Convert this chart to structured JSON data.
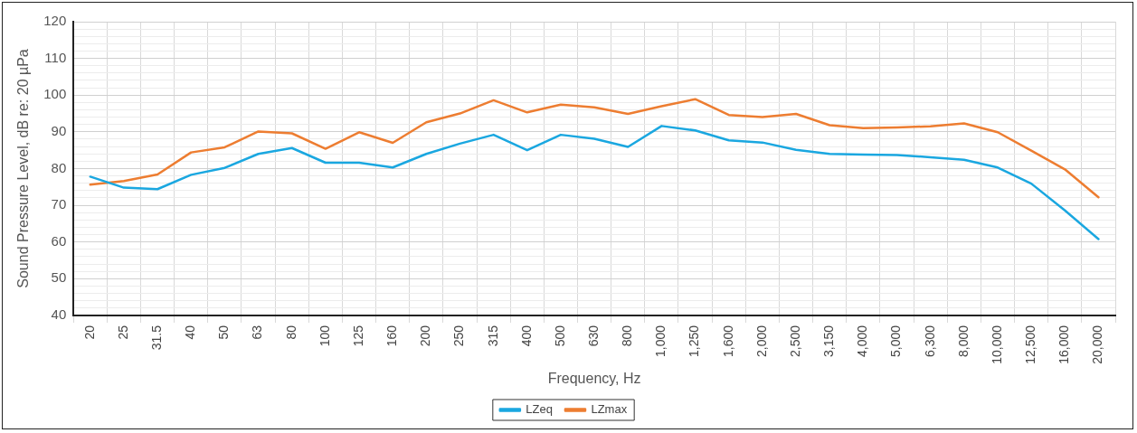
{
  "chart_data": {
    "type": "line",
    "xlabel": "Frequency, Hz",
    "ylabel": "Sound Pressure Level, dB re: 20 µPa",
    "categories": [
      "20",
      "25",
      "31.5",
      "40",
      "50",
      "63",
      "80",
      "100",
      "125",
      "160",
      "200",
      "250",
      "315",
      "400",
      "500",
      "630",
      "800",
      "1,000",
      "1,250",
      "1,600",
      "2,000",
      "2,500",
      "3,150",
      "4,000",
      "5,000",
      "6,300",
      "8,000",
      "10,000",
      "12,500",
      "16,000",
      "20,000"
    ],
    "series": [
      {
        "name": "LZeq",
        "color": "#1aa7e0",
        "values": [
          77.8,
          74.8,
          74.4,
          78.3,
          80.2,
          84,
          85.6,
          81.6,
          81.6,
          80.3,
          84,
          86.8,
          89.2,
          85,
          89.2,
          88.1,
          85.9,
          91.6,
          90.4,
          87.7,
          87.1,
          85.1,
          84,
          83.8,
          83.7,
          83.1,
          82.4,
          80.3,
          75.9,
          68.6,
          60.8
        ]
      },
      {
        "name": "LZmax",
        "color": "#ed7d31",
        "values": [
          75.6,
          76.6,
          78.4,
          84.4,
          85.8,
          90.1,
          89.6,
          85.4,
          89.9,
          87,
          92.6,
          95,
          98.6,
          95.3,
          97.4,
          96.7,
          94.9,
          97,
          98.9,
          94.6,
          94,
          94.9,
          91.8,
          91,
          91.2,
          91.5,
          92.3,
          89.9,
          84.9,
          79.8,
          72.2
        ]
      }
    ],
    "ylim": [
      40,
      120
    ],
    "yticks": [
      40,
      {
        "value": 42,
        "label": null
      },
      {
        "value": 44,
        "label": null
      },
      {
        "value": 46,
        "label": null
      },
      {
        "value": 48,
        "label": null
      },
      50,
      {
        "value": 52,
        "label": null
      },
      {
        "value": 54,
        "label": null
      },
      {
        "value": 56,
        "label": null
      },
      {
        "value": 58,
        "label": null
      },
      60,
      {
        "value": 62,
        "label": null
      },
      {
        "value": 64,
        "label": null
      },
      {
        "value": 66,
        "label": null
      },
      {
        "value": 68,
        "label": null
      },
      70,
      {
        "value": 72,
        "label": null
      },
      {
        "value": 74,
        "label": null
      },
      {
        "value": 76,
        "label": null
      },
      {
        "value": 78,
        "label": null
      },
      80,
      {
        "value": 82,
        "label": null
      },
      {
        "value": 84,
        "label": null
      },
      {
        "value": 86,
        "label": null
      },
      {
        "value": 88,
        "label": null
      },
      90,
      {
        "value": 92,
        "label": null
      },
      {
        "value": 94,
        "label": null
      },
      {
        "value": 96,
        "label": null
      },
      {
        "value": 98,
        "label": null
      },
      100,
      {
        "value": 102,
        "label": null
      },
      {
        "value": 104,
        "label": null
      },
      {
        "value": 106,
        "label": null
      },
      {
        "value": 108,
        "label": null
      },
      110,
      {
        "value": 112,
        "label": null
      },
      {
        "value": 114,
        "label": null
      },
      {
        "value": 116,
        "label": null
      },
      {
        "value": 118,
        "label": null
      },
      120
    ],
    "grid": true,
    "legend": "bottom",
    "marker": "none",
    "line_style": "solid"
  }
}
